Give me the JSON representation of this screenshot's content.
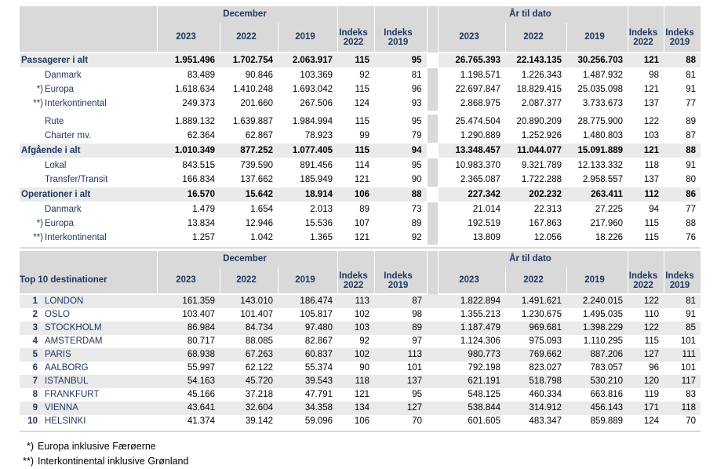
{
  "table1": {
    "group_headers": [
      "December",
      "År til dato"
    ],
    "col_headers": [
      "2023",
      "2022",
      "2019",
      "Indeks 2022",
      "Indeks 2019",
      "2023",
      "2022",
      "2019",
      "Indeks 2022",
      "Indeks 2019"
    ],
    "rows": [
      {
        "label": "Passagerer i alt",
        "style": "total",
        "values": [
          "1.951.496",
          "1.702.754",
          "2.063.917",
          "115",
          "95",
          "26.765.393",
          "22.143.135",
          "30.256.703",
          "121",
          "88"
        ]
      },
      {
        "label": "Danmark",
        "style": "sub",
        "marker": "",
        "values": [
          "83.489",
          "90.846",
          "103.369",
          "92",
          "81",
          "1.198.571",
          "1.226.343",
          "1.487.932",
          "98",
          "81"
        ]
      },
      {
        "label": "Europa",
        "style": "sub",
        "marker": "*)",
        "values": [
          "1.618.634",
          "1.410.248",
          "1.693.042",
          "115",
          "96",
          "22.697.847",
          "18.829.415",
          "25.035.098",
          "121",
          "91"
        ]
      },
      {
        "label": "Interkontinental",
        "style": "sub",
        "marker": "**)",
        "values": [
          "249.373",
          "201.660",
          "267.506",
          "124",
          "93",
          "2.868.975",
          "2.087.377",
          "3.733.673",
          "137",
          "77"
        ]
      },
      {
        "separator": true
      },
      {
        "label": "Rute",
        "style": "sub",
        "marker": "",
        "values": [
          "1.889.132",
          "1.639.887",
          "1.984.994",
          "115",
          "95",
          "25.474.504",
          "20.890.209",
          "28.775.900",
          "122",
          "89"
        ]
      },
      {
        "label": "Charter mv.",
        "style": "sub",
        "marker": "",
        "values": [
          "62.364",
          "62.867",
          "78.923",
          "99",
          "79",
          "1.290.889",
          "1.252.926",
          "1.480.803",
          "103",
          "87"
        ]
      },
      {
        "label": "Afgående i alt",
        "style": "total",
        "values": [
          "1.010.349",
          "877.252",
          "1.077.405",
          "115",
          "94",
          "13.348.457",
          "11.044.077",
          "15.091.889",
          "121",
          "88"
        ]
      },
      {
        "label": "Lokal",
        "style": "sub",
        "marker": "",
        "values": [
          "843.515",
          "739.590",
          "891.456",
          "114",
          "95",
          "10.983.370",
          "9.321.789",
          "12.133.332",
          "118",
          "91"
        ]
      },
      {
        "label": "Transfer/Transit",
        "style": "sub",
        "marker": "",
        "values": [
          "166.834",
          "137.662",
          "185.949",
          "121",
          "90",
          "2.365.087",
          "1.722.288",
          "2.958.557",
          "137",
          "80"
        ]
      },
      {
        "label": "Operationer i alt",
        "style": "total",
        "values": [
          "16.570",
          "15.642",
          "18.914",
          "106",
          "88",
          "227.342",
          "202.232",
          "263.411",
          "112",
          "86"
        ]
      },
      {
        "label": "Danmark",
        "style": "sub",
        "marker": "",
        "values": [
          "1.479",
          "1.654",
          "2.013",
          "89",
          "73",
          "21.014",
          "22.313",
          "27.225",
          "94",
          "77"
        ]
      },
      {
        "label": "Europa",
        "style": "sub",
        "marker": "*)",
        "values": [
          "13.834",
          "12.946",
          "15.536",
          "107",
          "89",
          "192.519",
          "167.863",
          "217.960",
          "115",
          "88"
        ]
      },
      {
        "label": "Interkontinental",
        "style": "sub",
        "marker": "**)",
        "values": [
          "1.257",
          "1.042",
          "1.365",
          "121",
          "92",
          "13.809",
          "12.056",
          "18.226",
          "115",
          "76"
        ]
      }
    ]
  },
  "table2": {
    "title": "Top 10 destinationer",
    "group_headers": [
      "December",
      "År til dato"
    ],
    "col_headers": [
      "2023",
      "2022",
      "2019",
      "Indeks 2022",
      "Indeks 2019",
      "2023",
      "2022",
      "2019",
      "Indeks 2022",
      "Indeks 2019"
    ],
    "rows": [
      {
        "rank": "1",
        "label": "LONDON",
        "values": [
          "161.359",
          "143.010",
          "186.474",
          "113",
          "87",
          "1.822.894",
          "1.491.621",
          "2.240.015",
          "122",
          "81"
        ]
      },
      {
        "rank": "2",
        "label": "OSLO",
        "values": [
          "103.407",
          "101.407",
          "105.817",
          "102",
          "98",
          "1.355.213",
          "1.230.675",
          "1.495.035",
          "110",
          "91"
        ]
      },
      {
        "rank": "3",
        "label": "STOCKHOLM",
        "values": [
          "86.984",
          "84.734",
          "97.480",
          "103",
          "89",
          "1.187.479",
          "969.681",
          "1.398.229",
          "122",
          "85"
        ]
      },
      {
        "rank": "4",
        "label": "AMSTERDAM",
        "values": [
          "80.717",
          "88.085",
          "82.867",
          "92",
          "97",
          "1.124.306",
          "975.093",
          "1.110.295",
          "115",
          "101"
        ]
      },
      {
        "rank": "5",
        "label": "PARIS",
        "values": [
          "68.938",
          "67.263",
          "60.837",
          "102",
          "113",
          "980.773",
          "769.662",
          "887.206",
          "127",
          "111"
        ]
      },
      {
        "rank": "6",
        "label": "AALBORG",
        "values": [
          "55.997",
          "62.122",
          "55.374",
          "90",
          "101",
          "792.198",
          "823.027",
          "783.057",
          "96",
          "101"
        ]
      },
      {
        "rank": "7",
        "label": "ISTANBUL",
        "values": [
          "54.163",
          "45.720",
          "39.543",
          "118",
          "137",
          "621.191",
          "518.798",
          "530.210",
          "120",
          "117"
        ]
      },
      {
        "rank": "8",
        "label": "FRANKFURT",
        "values": [
          "45.166",
          "37.218",
          "47.791",
          "121",
          "95",
          "548.125",
          "460.334",
          "663.816",
          "119",
          "83"
        ]
      },
      {
        "rank": "9",
        "label": "VIENNA",
        "values": [
          "43.641",
          "32.604",
          "34.358",
          "134",
          "127",
          "538.844",
          "314.912",
          "456.143",
          "171",
          "118"
        ]
      },
      {
        "rank": "10",
        "label": "HELSINKI",
        "values": [
          "41.374",
          "39.142",
          "59.096",
          "106",
          "70",
          "601.605",
          "483.347",
          "859.889",
          "124",
          "70"
        ]
      }
    ]
  },
  "footnotes": [
    {
      "marker": "*)",
      "text": "Europa inklusive Færøerne"
    },
    {
      "marker": "**)",
      "text": "Interkontinental inklusive Grønland"
    }
  ],
  "colors": {
    "header_bg": "#d9d9d9",
    "highlight_bg": "#eaeaea",
    "label_text": "#1f3864",
    "number_text": "#000000"
  }
}
